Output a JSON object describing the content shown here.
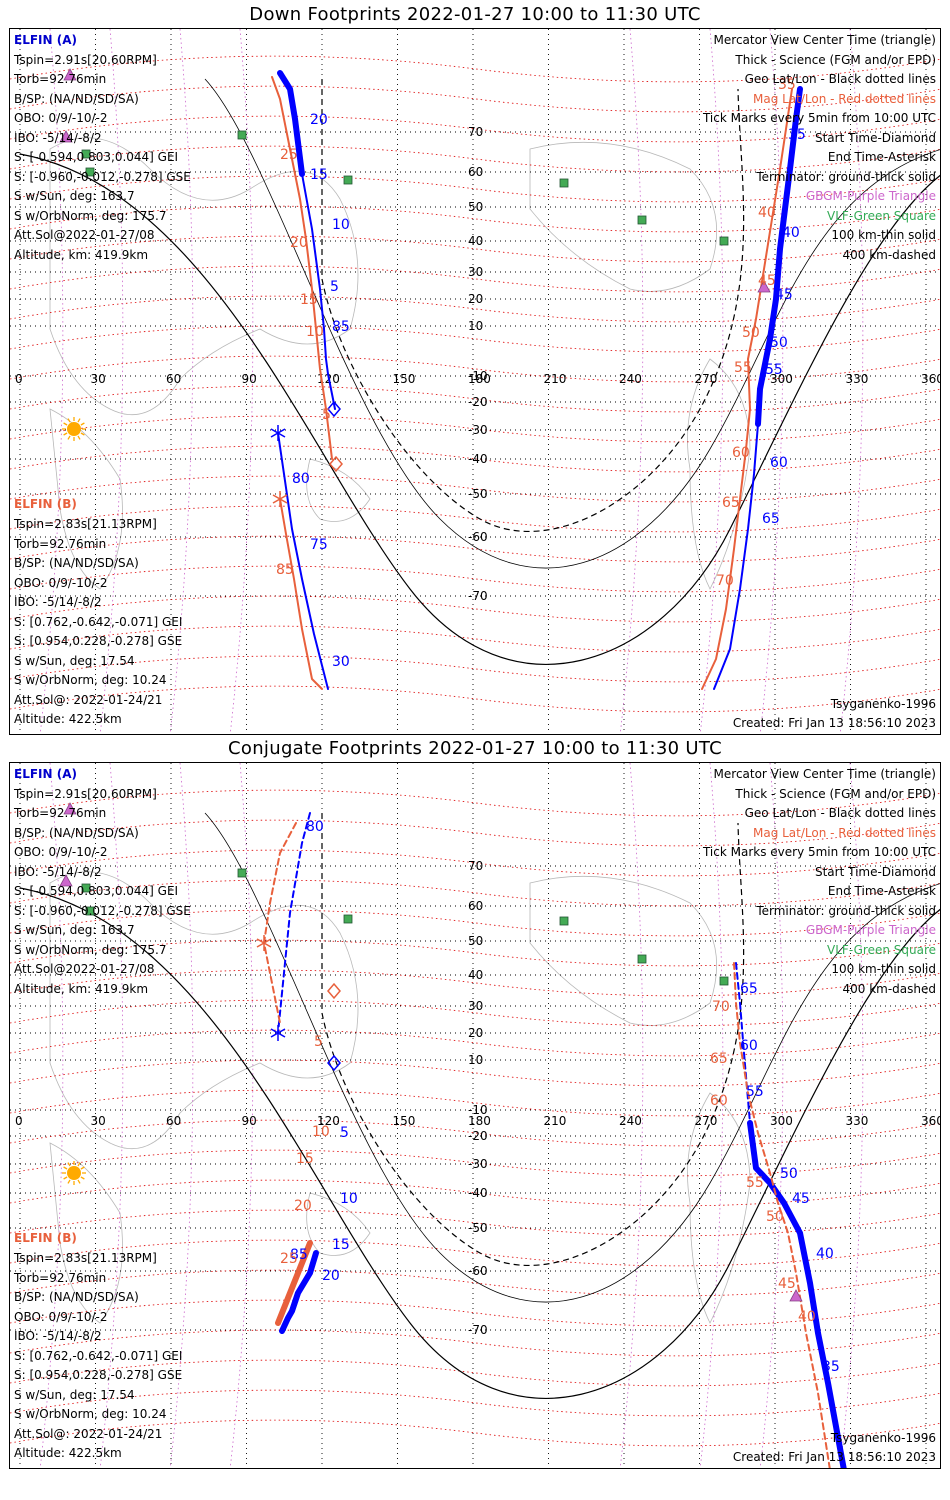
{
  "panels": [
    {
      "title": "Down Footprints 2022-01-27 10:00 to 11:30 UTC",
      "elfin_a": {
        "label": "ELFIN (A)",
        "lines": [
          "Tspin=2.91s[20.60RPM]",
          "Torb=92.76min",
          "B/SP: (NA/ND/SD/SA)",
          "OBO: 0/9/-10/-2",
          "IBO: -5/14/-8/2",
          "S: [-0.594,0.803,0.044] GEI",
          "S: [-0.960,-0.012,-0.278] GSE",
          "S w/Sun, deg: 163.7",
          "S w/OrbNorm, deg: 175.7",
          "Att.Sol@2022-01-27/08",
          "Altitude, km: 419.9km"
        ]
      },
      "elfin_b": {
        "label": "ELFIN (B)",
        "lines": [
          "Tspin=2.83s[21.13RPM]",
          "Torb=92.76min",
          "B/SP: (NA/ND/SD/SA)",
          "OBO: 0/9/-10/-2",
          "IBO: -5/14/-8/2",
          "S: [0.762,-0.642,-0.071] GEI",
          "S: [0.954,0.228,-0.278] GSE",
          "S w/Sun, deg: 17.54",
          "S w/OrbNorm, deg: 10.24",
          "Att.Sol@: 2022-01-24/21",
          "Altitude: 422.5km"
        ]
      },
      "legend": [
        "Mercator View Center Time (triangle)",
        "Thick - Science (FGM and/or EPD)",
        "Geo Lat/Lon - Black dotted lines",
        "Mag Lat/Lon - Red dotted lines",
        "Tick Marks every 5min from 10:00 UTC",
        "Start Time-Diamond",
        "End Time-Asterisk",
        "Terminator: ground-thick solid",
        "GBGM-Purple Triangle",
        "VLF-Green Square",
        "100 km-thin solid",
        "400 km-dashed"
      ],
      "model": "Tsyganenko-1996",
      "created": "Created: Fri Jan 13 18:56:10 2023",
      "lon_labels": [
        "0",
        "30",
        "60",
        "90",
        "120",
        "150",
        "180",
        "210",
        "240",
        "270",
        "300",
        "330",
        "360"
      ],
      "lat_labels": [
        "70",
        "60",
        "50",
        "40",
        "30",
        "20",
        "10",
        "-10",
        "-20",
        "-30",
        "-40",
        "-50",
        "-60",
        "-70"
      ],
      "track_labels_blue": [
        "20",
        "15",
        "10",
        "5",
        "85",
        "80",
        "75",
        "30",
        "35",
        "40",
        "45",
        "50",
        "55",
        "60",
        "65"
      ],
      "track_labels_red": [
        "25",
        "20",
        "15",
        "10",
        "5",
        "85",
        "35",
        "40",
        "45",
        "50",
        "55",
        "60",
        "65",
        "70"
      ]
    },
    {
      "title": "Conjugate Footprints 2022-01-27 10:00 to 11:30 UTC",
      "elfin_a": {
        "label": "ELFIN (A)",
        "lines": [
          "Tspin=2.91s[20.60RPM]",
          "Torb=92.76min",
          "B/SP: (NA/ND/SD/SA)",
          "OBO: 0/9/-10/-2",
          "IBO: -5/14/-8/2",
          "S: [-0.594,0.803,0.044] GEI",
          "S: [-0.960,-0.012,-0.278] GSE",
          "S w/Sun, deg: 163.7",
          "S w/OrbNorm, deg: 175.7",
          "Att.Sol@2022-01-27/08",
          "Altitude, km: 419.9km"
        ]
      },
      "elfin_b": {
        "label": "ELFIN (B)",
        "lines": [
          "Tspin=2.83s[21.13RPM]",
          "Torb=92.76min",
          "B/SP: (NA/ND/SD/SA)",
          "OBO: 0/9/-10/-2",
          "IBO: -5/14/-8/2",
          "S: [0.762,-0.642,-0.071] GEI",
          "S: [0.954,0.228,-0.278] GSE",
          "S w/Sun, deg: 17.54",
          "S w/OrbNorm, deg: 10.24",
          "Att.Sol@: 2022-01-24/21",
          "Altitude: 422.5km"
        ]
      },
      "legend": [
        "Mercator View Center Time (triangle)",
        "Thick - Science (FGM and/or EPD)",
        "Geo Lat/Lon - Black dotted lines",
        "Mag Lat/Lon - Red dotted lines",
        "Tick Marks every 5min from 10:00 UTC",
        "Start Time-Diamond",
        "End Time-Asterisk",
        "Terminator: ground-thick solid",
        "GBGM-Purple Triangle",
        "VLF-Green Square",
        "100 km-thin solid",
        "400 km-dashed"
      ],
      "model": "Tsyganenko-1996",
      "created": "Created: Fri Jan 13 18:56:10 2023",
      "lon_labels": [
        "0",
        "30",
        "60",
        "90",
        "120",
        "150",
        "180",
        "210",
        "240",
        "270",
        "300",
        "330",
        "360"
      ],
      "lat_labels": [
        "70",
        "60",
        "50",
        "40",
        "30",
        "20",
        "10",
        "-10",
        "-20",
        "-30",
        "-40",
        "-50",
        "-60",
        "-70"
      ],
      "track_labels_blue": [
        "80",
        "85",
        "5",
        "10",
        "15",
        "20",
        "65",
        "60",
        "55",
        "50",
        "45",
        "40",
        "35"
      ],
      "track_labels_red": [
        "5",
        "10",
        "15",
        "20",
        "25",
        "70",
        "65",
        "60",
        "55",
        "50",
        "45",
        "40"
      ]
    }
  ],
  "colors": {
    "elfin_a": "#0000ff",
    "elfin_b": "#e8603c",
    "geo_grid": "#000000",
    "mag_grid": "#dd0000",
    "gbgm": "#cc66cc",
    "vlf": "#44aa55",
    "sun": "#ffaa00"
  },
  "icons": [
    "sun-icon",
    "vlf-square-icon",
    "gbgm-triangle-icon",
    "start-diamond-icon",
    "end-asterisk-icon"
  ]
}
